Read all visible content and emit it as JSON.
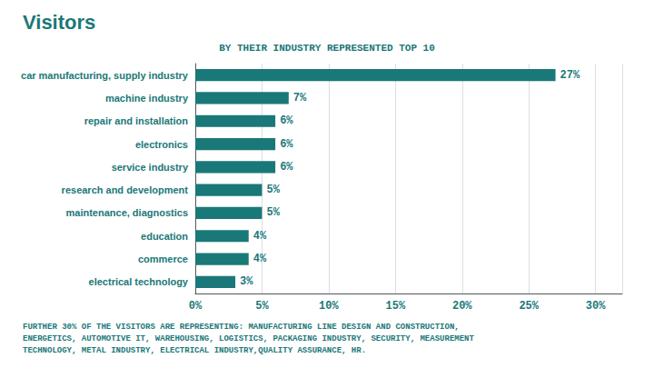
{
  "chart_data": {
    "type": "bar",
    "orientation": "horizontal",
    "title": "Visitors",
    "subtitle": "BY THEIR INDUSTRY REPRESENTED TOP 10",
    "annotations": [
      "FURTHER 30% OF THE VISITORS ARE REPRESENTING: MANUFACTURING LINE DESIGN AND CONSTRUCTION,\nENERGETICS, AUTOMOTIVE IT, WAREHOUSING, LOGISTICS, PACKAGING INDUSTRY, SECURITY, MEASUREMENT\nTECHNOLOGY, METAL INDUSTRY, ELECTRICAL INDUSTRY,QUALITY ASSURANCE, HR."
    ],
    "categories": [
      "car manufacturing, supply industry",
      "machine industry",
      "repair and installation",
      "electronics",
      "service industry",
      "research and development",
      "maintenance, diagnostics",
      "education",
      "commerce",
      "electrical technology"
    ],
    "values": [
      27,
      7,
      6,
      6,
      6,
      5,
      5,
      4,
      4,
      3
    ],
    "value_labels": [
      "27%",
      "7%",
      "6%",
      "6%",
      "6%",
      "5%",
      "5%",
      "4%",
      "4%",
      "3%"
    ],
    "data_labels": true,
    "color": "#1a7878",
    "xlim": [
      0,
      32
    ],
    "xticks": [
      {
        "value": 0,
        "label": "0%"
      },
      {
        "value": 5,
        "label": "5%"
      },
      {
        "value": 10,
        "label": "10%"
      },
      {
        "value": 15,
        "label": "15%"
      },
      {
        "value": 20,
        "label": "20%"
      },
      {
        "value": 25,
        "label": "25%"
      },
      {
        "value": 30,
        "label": "30%"
      }
    ],
    "grid": true
  }
}
